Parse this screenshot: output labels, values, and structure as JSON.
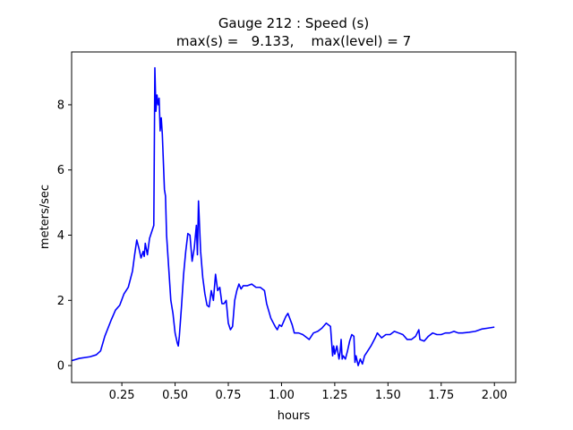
{
  "chart_data": {
    "type": "line",
    "title": [
      "Gauge 212 : Speed (s)",
      "max(s) =   9.133,    max(level) = 7"
    ],
    "xlabel": "hours",
    "ylabel": "meters/sec",
    "xlim": [
      0.014,
      2.1
    ],
    "ylim": [
      -0.52,
      9.62
    ],
    "xticks": [
      0.25,
      {
        "value": 0.5,
        "label": "0.50"
      },
      0.75,
      {
        "value": 1,
        "label": "1.00"
      },
      1.25,
      {
        "value": 1.5,
        "label": "1.50"
      },
      1.75,
      {
        "value": 2,
        "label": "2.00"
      }
    ],
    "yticks": [
      0,
      2,
      4,
      6,
      8
    ],
    "grid": false,
    "series": [
      {
        "color": "#0000ff",
        "x": [
          0.014,
          0.05,
          0.1,
          0.13,
          0.15,
          0.17,
          0.2,
          0.22,
          0.24,
          0.26,
          0.28,
          0.3,
          0.31,
          0.32,
          0.33,
          0.34,
          0.35,
          0.355,
          0.36,
          0.37,
          0.38,
          0.39,
          0.4,
          0.405,
          0.41,
          0.415,
          0.42,
          0.425,
          0.43,
          0.435,
          0.44,
          0.45,
          0.455,
          0.46,
          0.47,
          0.48,
          0.49,
          0.5,
          0.51,
          0.515,
          0.52,
          0.53,
          0.54,
          0.55,
          0.56,
          0.57,
          0.58,
          0.59,
          0.6,
          0.605,
          0.61,
          0.62,
          0.63,
          0.64,
          0.65,
          0.66,
          0.67,
          0.68,
          0.69,
          0.7,
          0.71,
          0.72,
          0.73,
          0.74,
          0.75,
          0.76,
          0.77,
          0.78,
          0.79,
          0.8,
          0.81,
          0.82,
          0.84,
          0.86,
          0.88,
          0.9,
          0.92,
          0.93,
          0.95,
          0.97,
          0.98,
          0.99,
          1.0,
          1.02,
          1.03,
          1.05,
          1.06,
          1.08,
          1.1,
          1.12,
          1.13,
          1.15,
          1.17,
          1.19,
          1.21,
          1.23,
          1.24,
          1.245,
          1.25,
          1.26,
          1.27,
          1.275,
          1.28,
          1.285,
          1.29,
          1.3,
          1.31,
          1.32,
          1.33,
          1.34,
          1.345,
          1.35,
          1.36,
          1.37,
          1.38,
          1.39,
          1.4,
          1.42,
          1.44,
          1.45,
          1.47,
          1.49,
          1.51,
          1.53,
          1.55,
          1.57,
          1.59,
          1.61,
          1.63,
          1.645,
          1.65,
          1.67,
          1.69,
          1.71,
          1.73,
          1.75,
          1.77,
          1.79,
          1.81,
          1.83,
          1.85,
          1.88,
          1.91,
          1.94,
          1.97,
          2.0
        ],
        "values": [
          0.15,
          0.22,
          0.27,
          0.33,
          0.45,
          0.9,
          1.4,
          1.7,
          1.85,
          2.2,
          2.4,
          2.9,
          3.4,
          3.85,
          3.6,
          3.3,
          3.5,
          3.35,
          3.75,
          3.4,
          3.9,
          4.1,
          4.3,
          9.133,
          7.8,
          8.3,
          8.0,
          8.2,
          7.2,
          7.6,
          7.1,
          5.4,
          5.2,
          4.0,
          3.0,
          2.0,
          1.6,
          1.0,
          0.7,
          0.6,
          0.9,
          1.8,
          2.8,
          3.5,
          4.05,
          4.0,
          3.2,
          3.6,
          4.3,
          3.4,
          5.05,
          3.5,
          2.7,
          2.2,
          1.85,
          1.8,
          2.3,
          2.0,
          2.8,
          2.3,
          2.4,
          1.9,
          1.9,
          2.0,
          1.3,
          1.1,
          1.2,
          2.0,
          2.3,
          2.5,
          2.35,
          2.45,
          2.45,
          2.5,
          2.4,
          2.4,
          2.3,
          1.9,
          1.45,
          1.2,
          1.1,
          1.25,
          1.2,
          1.5,
          1.6,
          1.25,
          1.0,
          1.0,
          0.95,
          0.85,
          0.8,
          1.0,
          1.05,
          1.15,
          1.3,
          1.2,
          0.3,
          0.6,
          0.35,
          0.6,
          0.2,
          0.4,
          0.8,
          0.2,
          0.3,
          0.2,
          0.45,
          0.75,
          0.95,
          0.9,
          0.1,
          0.3,
          0.0,
          0.2,
          0.05,
          0.3,
          0.4,
          0.6,
          0.85,
          1.0,
          0.85,
          0.95,
          0.95,
          1.05,
          1.0,
          0.95,
          0.8,
          0.8,
          0.9,
          1.1,
          0.8,
          0.75,
          0.9,
          1.0,
          0.95,
          0.95,
          1.0,
          1.0,
          1.05,
          1.0,
          1.0,
          1.02,
          1.05,
          1.12,
          1.15,
          1.18
        ]
      }
    ]
  }
}
